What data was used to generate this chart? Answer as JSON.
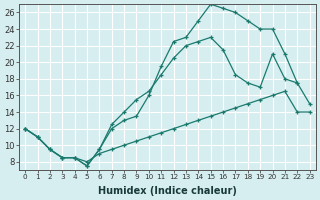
{
  "xlabel": "Humidex (Indice chaleur)",
  "ylabel": "",
  "bg_color": "#d6eef0",
  "grid_color": "#ffffff",
  "line_color": "#1a7a6e",
  "xlim": [
    -0.5,
    23.5
  ],
  "ylim": [
    7,
    27
  ],
  "xticks": [
    0,
    1,
    2,
    3,
    4,
    5,
    6,
    7,
    8,
    9,
    10,
    11,
    12,
    13,
    14,
    15,
    16,
    17,
    18,
    19,
    20,
    21,
    22,
    23
  ],
  "yticks": [
    8,
    10,
    12,
    14,
    16,
    18,
    20,
    22,
    24,
    26
  ],
  "line_bottom_x": [
    0,
    1,
    2,
    3,
    4,
    5,
    6,
    7,
    8,
    9,
    10,
    11,
    12,
    13,
    14,
    15,
    16,
    17,
    18,
    19,
    20,
    21,
    22,
    23
  ],
  "line_bottom_y": [
    12,
    11,
    9.5,
    8.5,
    8.5,
    8,
    9,
    9.5,
    10,
    10.5,
    11,
    11.5,
    12,
    12.5,
    13,
    13.5,
    14,
    14.5,
    15,
    15.5,
    16,
    16.5,
    14,
    14
  ],
  "line_top_x": [
    0,
    1,
    2,
    3,
    4,
    5,
    6,
    7,
    8,
    9,
    10,
    11,
    12,
    13,
    14,
    15,
    16,
    17,
    18,
    19,
    20,
    21,
    22,
    23
  ],
  "line_top_y": [
    12,
    11,
    9.5,
    8.5,
    8.5,
    7.5,
    9.5,
    12,
    13,
    13.5,
    16,
    19.5,
    22.5,
    23,
    25,
    27,
    26.5,
    26,
    25,
    24,
    24,
    21,
    17.5,
    15
  ],
  "line_mid_x": [
    0,
    1,
    2,
    3,
    4,
    5,
    6,
    7,
    8,
    9,
    10,
    11,
    12,
    13,
    14,
    15,
    16,
    17,
    18,
    19,
    20,
    21,
    22
  ],
  "line_mid_y": [
    12,
    11,
    9.5,
    8.5,
    8.5,
    7.5,
    9.5,
    12.5,
    14,
    15.5,
    16.5,
    18.5,
    20.5,
    22,
    22.5,
    23,
    21.5,
    18.5,
    17.5,
    17,
    21,
    18,
    17.5
  ]
}
